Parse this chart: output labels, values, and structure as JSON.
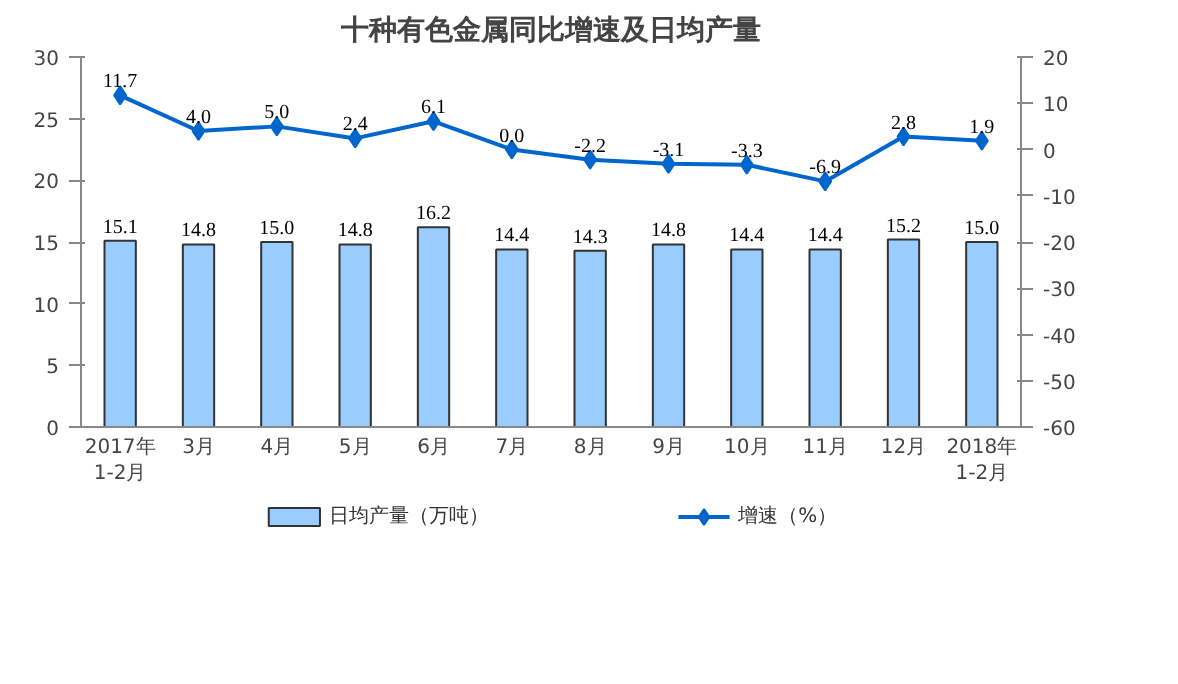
{
  "chart_data": {
    "type": "bar",
    "title": "十种有色金属同比增速及日均产量",
    "categories": [
      "2017年\n1-2月",
      "3月",
      "4月",
      "5月",
      "6月",
      "7月",
      "8月",
      "9月",
      "10月",
      "11月",
      "12月",
      "2018年\n1-2月"
    ],
    "series": [
      {
        "name": "日均产量（万吨）",
        "color": "#99ccff",
        "values": [
          15.1,
          14.8,
          15.0,
          14.8,
          16.2,
          14.4,
          14.3,
          14.8,
          14.4,
          14.4,
          15.2,
          15.0
        ],
        "value_labels": [
          "15.1",
          "14.8",
          "15.0",
          "14.8",
          "16.2",
          "14.4",
          "14.3",
          "14.8",
          "14.4",
          "14.4",
          "15.2",
          "15.0"
        ]
      },
      {
        "name": "增速（%）",
        "type": "line",
        "axis": "y2",
        "color": "#0066cc",
        "marker": "diamond",
        "values": [
          11.7,
          4.0,
          5.0,
          2.4,
          6.1,
          0.0,
          -2.2,
          -3.1,
          -3.3,
          -6.9,
          2.8,
          1.9
        ],
        "value_labels": [
          "11.7",
          "4.0",
          "5.0",
          "2.4",
          "6.1",
          "0.0",
          "-2.2",
          "-3.1",
          "-3.3",
          "-6.9",
          "2.8",
          "1.9"
        ]
      }
    ],
    "ylim": [
      0,
      30
    ],
    "yticks": [
      0,
      5,
      10,
      15,
      20,
      25,
      30
    ],
    "y2lim": [
      -60,
      20
    ],
    "y2ticks": [
      -60,
      -50,
      -40,
      -30,
      -20,
      -10,
      0,
      10,
      20
    ],
    "grid": false,
    "legend": "bottom"
  }
}
